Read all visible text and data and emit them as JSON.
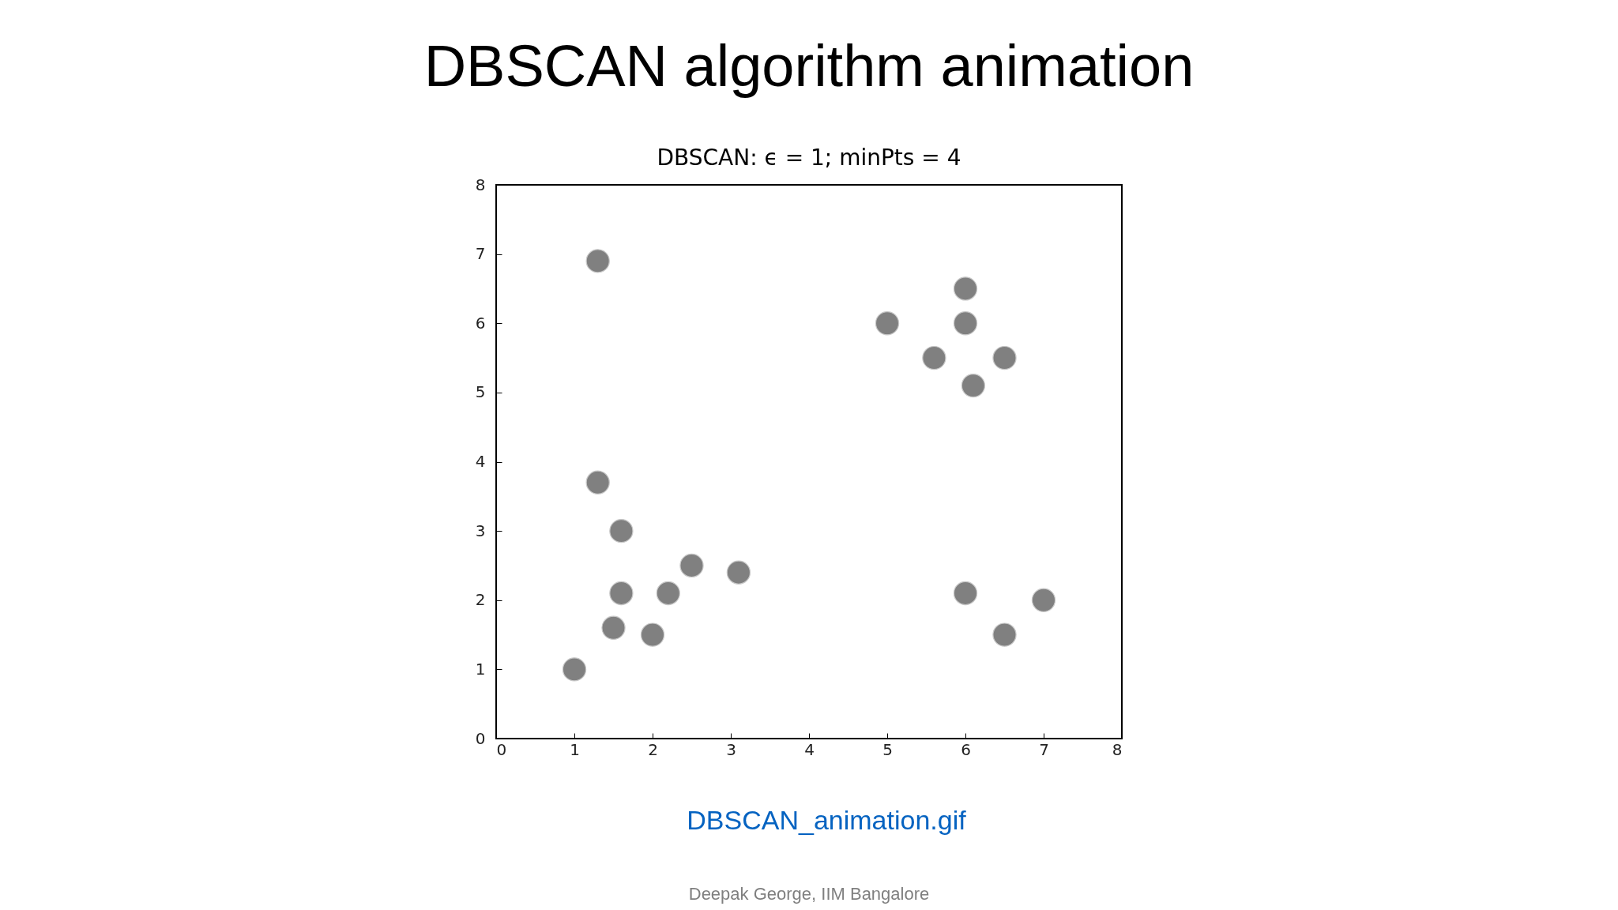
{
  "chart_data": {
    "type": "scatter",
    "title": "DBSCAN algorithm animation",
    "subtitle": "DBSCAN: ϵ = 1; minPts = 4",
    "x": [
      1,
      1.3,
      1.3,
      1.5,
      1.6,
      1.6,
      2,
      2.2,
      2.5,
      3.1,
      5,
      5.6,
      6,
      6,
      6,
      6.1,
      6.5,
      6.5,
      7
    ],
    "series": [
      {
        "color": "#808080",
        "values": [
          1,
          6.9,
          3.7,
          1.6,
          3.0,
          2.1,
          1.5,
          2.1,
          2.5,
          2.4,
          6,
          5.5,
          6.5,
          6,
          2.1,
          5.1,
          5.5,
          1.5,
          2
        ]
      }
    ],
    "xlim": [
      0,
      8
    ],
    "ylim": [
      0,
      8
    ],
    "xticks": [
      0,
      1,
      2,
      3,
      4,
      5,
      6,
      7,
      8
    ],
    "yticks": [
      0,
      1,
      2,
      3,
      4,
      5,
      6,
      7,
      8
    ],
    "marker": "circle",
    "annotations": [
      "DBSCAN_animation.gif",
      "Deepak George, IIM Bangalore"
    ]
  }
}
